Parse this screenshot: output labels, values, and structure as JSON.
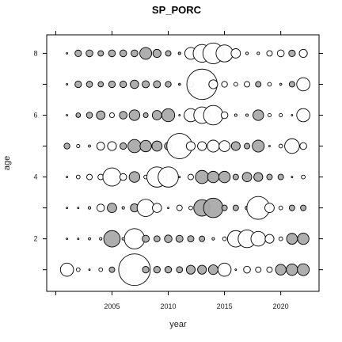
{
  "chart_data": {
    "type": "scatter",
    "title": "SP_PORC",
    "xlabel": "year",
    "ylabel": "age",
    "xlim": [
      1999.2,
      2023.4
    ],
    "ylim": [
      0.3,
      8.6
    ],
    "x_ticks": [
      2005,
      2010,
      2015,
      2020
    ],
    "y_ticks": [
      2,
      4,
      6,
      8
    ],
    "x_minor_ticks": [
      2000,
      2005,
      2010,
      2015,
      2020
    ],
    "y_minor_ticks": [
      1,
      2,
      3,
      4,
      5,
      6,
      7,
      8
    ],
    "grid": false,
    "legend": "none",
    "bubble_encoding": "radius proportional to |value|; grey = negative, white = positive",
    "colors": {
      "negative": "#aaaaaa",
      "positive": "#ffffff",
      "outline": "#000000"
    },
    "points": [
      {
        "x": 2001,
        "y": 8,
        "v": 0.6
      },
      {
        "x": 2002,
        "y": 8,
        "v": -2.6
      },
      {
        "x": 2003,
        "y": 8,
        "v": -2.7
      },
      {
        "x": 2004,
        "y": 8,
        "v": -2.2
      },
      {
        "x": 2005,
        "y": 8,
        "v": -2.7
      },
      {
        "x": 2006,
        "y": 8,
        "v": -2.7
      },
      {
        "x": 2007,
        "y": 8,
        "v": -2.7
      },
      {
        "x": 2008,
        "y": 8,
        "v": -4.7
      },
      {
        "x": 2009,
        "y": 8,
        "v": -3.2
      },
      {
        "x": 2010,
        "y": 8,
        "v": -2.2
      },
      {
        "x": 2011,
        "y": 8,
        "v": -1.0
      },
      {
        "x": 2012,
        "y": 8,
        "v": 4.7
      },
      {
        "x": 2013,
        "y": 8,
        "v": 7.0
      },
      {
        "x": 2014,
        "y": 8,
        "v": 8.2
      },
      {
        "x": 2015,
        "y": 8,
        "v": 6.7
      },
      {
        "x": 2016,
        "y": 8,
        "v": 3.7
      },
      {
        "x": 2017,
        "y": 8,
        "v": 1.0
      },
      {
        "x": 2018,
        "y": 8,
        "v": 1.0
      },
      {
        "x": 2019,
        "y": 8,
        "v": 2.2
      },
      {
        "x": 2020,
        "y": 8,
        "v": 2.7
      },
      {
        "x": 2021,
        "y": 8,
        "v": -2.6
      },
      {
        "x": 2022,
        "y": 8,
        "v": 3.2
      },
      {
        "x": 2001,
        "y": 7,
        "v": 0.6
      },
      {
        "x": 2002,
        "y": 7,
        "v": -2.6
      },
      {
        "x": 2003,
        "y": 7,
        "v": -2.4
      },
      {
        "x": 2004,
        "y": 7,
        "v": -2.1
      },
      {
        "x": 2005,
        "y": 7,
        "v": -2.6
      },
      {
        "x": 2006,
        "y": 7,
        "v": -2.6
      },
      {
        "x": 2007,
        "y": 7,
        "v": -3.3
      },
      {
        "x": 2008,
        "y": 7,
        "v": -2.8
      },
      {
        "x": 2009,
        "y": 7,
        "v": -2.8
      },
      {
        "x": 2010,
        "y": 7,
        "v": -2.3
      },
      {
        "x": 2011,
        "y": 7,
        "v": -0.8
      },
      {
        "x": 2012,
        "y": 7,
        "v": 2.3
      },
      {
        "x": 2013,
        "y": 7,
        "v": 12.0
      },
      {
        "x": 2014,
        "y": 7,
        "v": 3.5
      },
      {
        "x": 2015,
        "y": 7,
        "v": 2.3
      },
      {
        "x": 2016,
        "y": 7,
        "v": 1.5
      },
      {
        "x": 2017,
        "y": 7,
        "v": 2.2
      },
      {
        "x": 2018,
        "y": 7,
        "v": -2.2
      },
      {
        "x": 2019,
        "y": 7,
        "v": 1.5
      },
      {
        "x": 2020,
        "y": 7,
        "v": 0.8
      },
      {
        "x": 2021,
        "y": 7,
        "v": -2.2
      },
      {
        "x": 2022,
        "y": 7,
        "v": 5.2
      },
      {
        "x": 2001,
        "y": 6,
        "v": 0.6
      },
      {
        "x": 2002,
        "y": 6,
        "v": -1.8
      },
      {
        "x": 2003,
        "y": 6,
        "v": -2.4
      },
      {
        "x": 2004,
        "y": 6,
        "v": -3.4
      },
      {
        "x": 2005,
        "y": 6,
        "v": 1.9
      },
      {
        "x": 2006,
        "y": 6,
        "v": -3.0
      },
      {
        "x": 2007,
        "y": 6,
        "v": -4.2
      },
      {
        "x": 2008,
        "y": 6,
        "v": -1.9
      },
      {
        "x": 2009,
        "y": 6,
        "v": -3.7
      },
      {
        "x": 2010,
        "y": 6,
        "v": -5.1
      },
      {
        "x": 2011,
        "y": 6,
        "v": 0.6
      },
      {
        "x": 2012,
        "y": 6,
        "v": 5.2
      },
      {
        "x": 2013,
        "y": 6,
        "v": 6.5
      },
      {
        "x": 2014,
        "y": 6,
        "v": 7.7
      },
      {
        "x": 2015,
        "y": 6,
        "v": 2.7
      },
      {
        "x": 2016,
        "y": 6,
        "v": 1.0
      },
      {
        "x": 2017,
        "y": 6,
        "v": 1.0
      },
      {
        "x": 2018,
        "y": 6,
        "v": -4.2
      },
      {
        "x": 2019,
        "y": 6,
        "v": 1.3
      },
      {
        "x": 2020,
        "y": 6,
        "v": 1.3
      },
      {
        "x": 2021,
        "y": 6,
        "v": 0.6
      },
      {
        "x": 2022,
        "y": 6,
        "v": 5.2
      },
      {
        "x": 2001,
        "y": 5,
        "v": -2.3
      },
      {
        "x": 2002,
        "y": 5,
        "v": 1.3
      },
      {
        "x": 2003,
        "y": 5,
        "v": 0.9
      },
      {
        "x": 2004,
        "y": 5,
        "v": 3.1
      },
      {
        "x": 2005,
        "y": 5,
        "v": 3.5
      },
      {
        "x": 2006,
        "y": 5,
        "v": -2.6
      },
      {
        "x": 2007,
        "y": 5,
        "v": -5.2
      },
      {
        "x": 2008,
        "y": 5,
        "v": -4.5
      },
      {
        "x": 2009,
        "y": 5,
        "v": -4.0
      },
      {
        "x": 2010,
        "y": 5,
        "v": -3.0
      },
      {
        "x": 2011,
        "y": 5,
        "v": 10.0
      },
      {
        "x": 2012,
        "y": 5,
        "v": 3.5
      },
      {
        "x": 2013,
        "y": 5,
        "v": 3.5
      },
      {
        "x": 2014,
        "y": 5,
        "v": 4.7
      },
      {
        "x": 2015,
        "y": 5,
        "v": 4.3
      },
      {
        "x": 2016,
        "y": 5,
        "v": -3.5
      },
      {
        "x": 2017,
        "y": 5,
        "v": -2.2
      },
      {
        "x": 2018,
        "y": 5,
        "v": -4.7
      },
      {
        "x": 2019,
        "y": 5,
        "v": 0.6
      },
      {
        "x": 2020,
        "y": 5,
        "v": 1.5
      },
      {
        "x": 2021,
        "y": 5,
        "v": 5.8
      },
      {
        "x": 2022,
        "y": 5,
        "v": 2.7
      },
      {
        "x": 2001,
        "y": 4,
        "v": 0.6
      },
      {
        "x": 2002,
        "y": 4,
        "v": 1.5
      },
      {
        "x": 2003,
        "y": 4,
        "v": 2.2
      },
      {
        "x": 2004,
        "y": 4,
        "v": 2.2
      },
      {
        "x": 2005,
        "y": 4,
        "v": 7.2
      },
      {
        "x": 2006,
        "y": 4,
        "v": 2.7
      },
      {
        "x": 2007,
        "y": 4,
        "v": -4.2
      },
      {
        "x": 2008,
        "y": 4,
        "v": 1.5
      },
      {
        "x": 2009,
        "y": 4,
        "v": 8.0
      },
      {
        "x": 2010,
        "y": 4,
        "v": 8.0
      },
      {
        "x": 2011,
        "y": 4,
        "v": 0.6
      },
      {
        "x": 2012,
        "y": 4,
        "v": 2.2
      },
      {
        "x": 2013,
        "y": 4,
        "v": -5.2
      },
      {
        "x": 2014,
        "y": 4,
        "v": -4.5
      },
      {
        "x": 2015,
        "y": 4,
        "v": -4.5
      },
      {
        "x": 2016,
        "y": 4,
        "v": -2.2
      },
      {
        "x": 2017,
        "y": 4,
        "v": -3.7
      },
      {
        "x": 2018,
        "y": 4,
        "v": -3.5
      },
      {
        "x": 2019,
        "y": 4,
        "v": -2.2
      },
      {
        "x": 2020,
        "y": 4,
        "v": -2.2
      },
      {
        "x": 2021,
        "y": 4,
        "v": 0.6
      },
      {
        "x": 2022,
        "y": 4,
        "v": 1.5
      },
      {
        "x": 2001,
        "y": 3,
        "v": 0.6
      },
      {
        "x": 2002,
        "y": 3,
        "v": 0.6
      },
      {
        "x": 2003,
        "y": 3,
        "v": 1.0
      },
      {
        "x": 2004,
        "y": 3,
        "v": 3.0
      },
      {
        "x": 2005,
        "y": 3,
        "v": -3.7
      },
      {
        "x": 2006,
        "y": 3,
        "v": 1.0
      },
      {
        "x": 2007,
        "y": 3,
        "v": -3.2
      },
      {
        "x": 2008,
        "y": 3,
        "v": 6.8
      },
      {
        "x": 2009,
        "y": 3,
        "v": 3.6
      },
      {
        "x": 2010,
        "y": 3,
        "v": 0.6
      },
      {
        "x": 2011,
        "y": 3,
        "v": 2.2
      },
      {
        "x": 2012,
        "y": 3,
        "v": 1.5
      },
      {
        "x": 2013,
        "y": 3,
        "v": -6.5
      },
      {
        "x": 2014,
        "y": 3,
        "v": -7.7
      },
      {
        "x": 2015,
        "y": 3,
        "v": -2.2
      },
      {
        "x": 2016,
        "y": 3,
        "v": -2.2
      },
      {
        "x": 2017,
        "y": 3,
        "v": -1.5
      },
      {
        "x": 2018,
        "y": 3,
        "v": 9.0
      },
      {
        "x": 2019,
        "y": 3,
        "v": 3.7
      },
      {
        "x": 2020,
        "y": 3,
        "v": 1.5
      },
      {
        "x": 2021,
        "y": 3,
        "v": -2.2
      },
      {
        "x": 2022,
        "y": 3,
        "v": -2.2
      },
      {
        "x": 2001,
        "y": 2,
        "v": 0.6
      },
      {
        "x": 2002,
        "y": 2,
        "v": 0.6
      },
      {
        "x": 2003,
        "y": 2,
        "v": 0.9
      },
      {
        "x": 2004,
        "y": 2,
        "v": 1.0
      },
      {
        "x": 2005,
        "y": 2,
        "v": -6.5
      },
      {
        "x": 2006,
        "y": 2,
        "v": 1.0
      },
      {
        "x": 2007,
        "y": 2,
        "v": 8.0
      },
      {
        "x": 2008,
        "y": 2,
        "v": -2.8
      },
      {
        "x": 2009,
        "y": 2,
        "v": -2.4
      },
      {
        "x": 2010,
        "y": 2,
        "v": -3.0
      },
      {
        "x": 2011,
        "y": 2,
        "v": -2.8
      },
      {
        "x": 2012,
        "y": 2,
        "v": -2.5
      },
      {
        "x": 2013,
        "y": 2,
        "v": -2.2
      },
      {
        "x": 2014,
        "y": 2,
        "v": 1.0
      },
      {
        "x": 2015,
        "y": 2,
        "v": 1.5
      },
      {
        "x": 2016,
        "y": 2,
        "v": 6.5
      },
      {
        "x": 2017,
        "y": 2,
        "v": 7.0
      },
      {
        "x": 2018,
        "y": 2,
        "v": 5.8
      },
      {
        "x": 2019,
        "y": 2,
        "v": 3.5
      },
      {
        "x": 2020,
        "y": 2,
        "v": 1.5
      },
      {
        "x": 2021,
        "y": 2,
        "v": -4.3
      },
      {
        "x": 2022,
        "y": 2,
        "v": -4.5
      },
      {
        "x": 2001,
        "y": 1,
        "v": 5.2
      },
      {
        "x": 2002,
        "y": 1,
        "v": 1.5
      },
      {
        "x": 2003,
        "y": 1,
        "v": 0.6
      },
      {
        "x": 2004,
        "y": 1,
        "v": 1.5
      },
      {
        "x": 2005,
        "y": 1,
        "v": -2.2
      },
      {
        "x": 2006,
        "y": 1,
        "v": -2.5
      },
      {
        "x": 2007,
        "y": 1,
        "v": 12.5
      },
      {
        "x": 2008,
        "y": 1,
        "v": -2.6
      },
      {
        "x": 2009,
        "y": 1,
        "v": -2.6
      },
      {
        "x": 2010,
        "y": 1,
        "v": -2.6
      },
      {
        "x": 2011,
        "y": 1,
        "v": -2.4
      },
      {
        "x": 2012,
        "y": 1,
        "v": -3.5
      },
      {
        "x": 2013,
        "y": 1,
        "v": -3.5
      },
      {
        "x": 2014,
        "y": 1,
        "v": -3.8
      },
      {
        "x": 2015,
        "y": 1,
        "v": 5.2
      },
      {
        "x": 2016,
        "y": 1,
        "v": 0.6
      },
      {
        "x": 2017,
        "y": 1,
        "v": 2.7
      },
      {
        "x": 2018,
        "y": 1,
        "v": 2.2
      },
      {
        "x": 2019,
        "y": 1,
        "v": 2.2
      },
      {
        "x": 2020,
        "y": 1,
        "v": -4.2
      },
      {
        "x": 2021,
        "y": 1,
        "v": -4.5
      },
      {
        "x": 2022,
        "y": 1,
        "v": -4.7
      }
    ]
  }
}
